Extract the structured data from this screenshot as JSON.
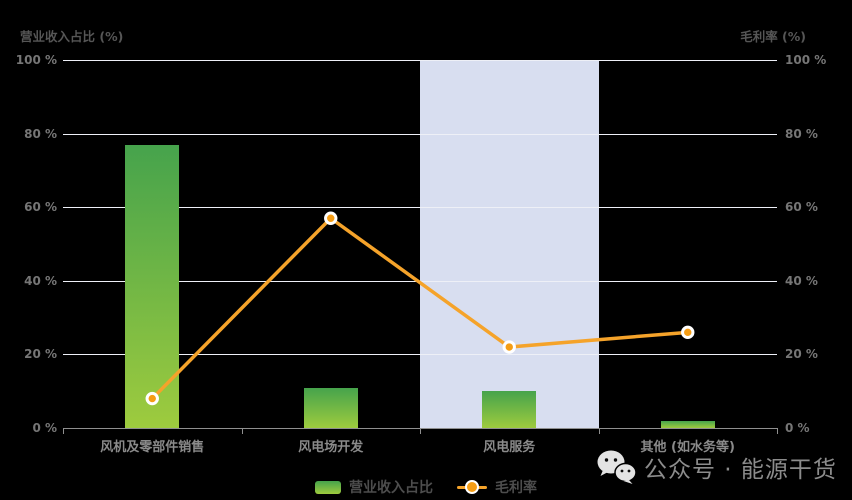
{
  "chart_data": {
    "type": "combo-bar-line",
    "categories": [
      "风机及零部件销售",
      "风电场开发",
      "风电服务",
      "其他 (如水务等)"
    ],
    "series": [
      {
        "name": "营业收入占比",
        "type": "bar",
        "values": [
          77,
          11,
          10,
          2
        ],
        "color_top": "#46a34c",
        "color_bottom": "#9ecb3e"
      },
      {
        "name": "毛利率",
        "type": "line",
        "values": [
          8,
          57,
          22,
          26
        ],
        "color": "#f5a32a",
        "marker_fill": "#f59d15",
        "marker_ring": "#ffffff"
      }
    ],
    "left_axis_title": "营业收入占比 (%)",
    "right_axis_title": "毛利率 (%)",
    "axis_min": 0,
    "axis_max": 100,
    "ticks": [
      {
        "value": 0,
        "label": "0 %"
      },
      {
        "value": 20,
        "label": "20 %"
      },
      {
        "value": 40,
        "label": "40 %"
      },
      {
        "value": 60,
        "label": "60 %"
      },
      {
        "value": 80,
        "label": "80 %"
      },
      {
        "value": 100,
        "label": "100 %"
      }
    ],
    "grid": true,
    "legend_position": "bottom",
    "highlight_category_index": 2,
    "highlight_color": "#d8def0"
  },
  "legend": {
    "bar_label": "营业收入占比",
    "line_label": "毛利率"
  },
  "footer": {
    "icon": "wechat-icon",
    "brand_text": "公众号 · 能源干货"
  },
  "colors": {
    "background": "#000000",
    "gridline": "#eef0f7",
    "axis_line": "#8f8f8f",
    "tick_label": "#767676",
    "axis_title": "#565656",
    "category_label": "#8a8a8a",
    "legend_text": "#4d4d4d",
    "footer_text": "#8c8c8c"
  }
}
